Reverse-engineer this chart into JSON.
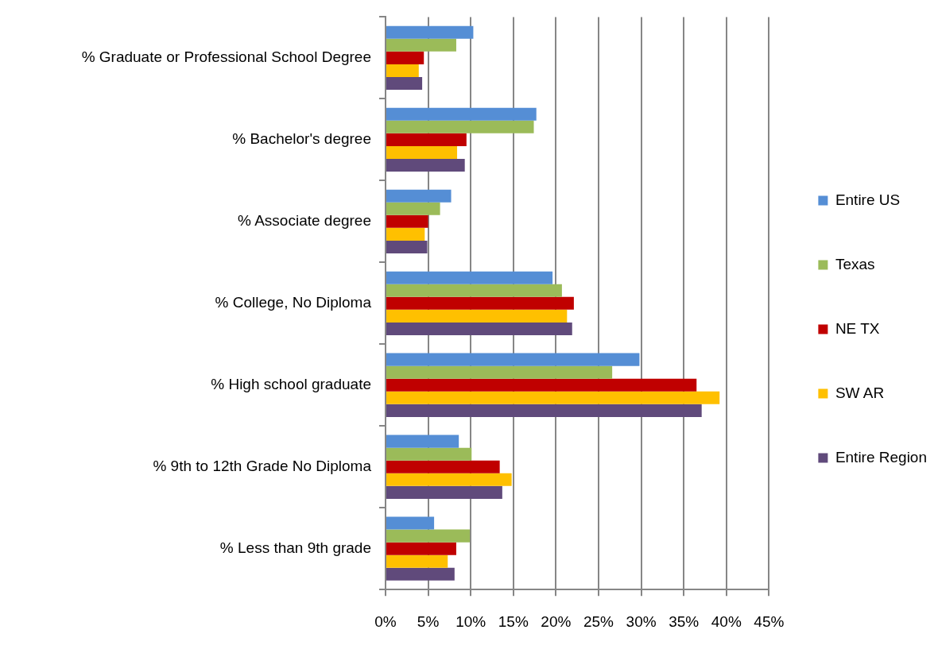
{
  "chart_data": {
    "type": "bar",
    "orientation": "horizontal",
    "categories": [
      "% Graduate or Professional School Degree",
      "% Bachelor's degree",
      "% Associate degree",
      "% College, No Diploma",
      "% High school graduate",
      "% 9th to 12th Grade No Diploma",
      "% Less than 9th grade"
    ],
    "series": [
      {
        "name": "Entire US",
        "color": "#558ed5",
        "values": [
          10.3,
          17.7,
          7.7,
          19.6,
          29.8,
          8.6,
          5.7
        ]
      },
      {
        "name": "Texas",
        "color": "#9bbb59",
        "values": [
          8.3,
          17.4,
          6.4,
          20.7,
          26.6,
          10.1,
          9.9
        ]
      },
      {
        "name": "NE TX",
        "color": "#c00000",
        "values": [
          4.5,
          9.5,
          5.0,
          22.1,
          36.5,
          13.4,
          8.3
        ]
      },
      {
        "name": "SW AR",
        "color": "#ffc000",
        "values": [
          3.9,
          8.4,
          4.6,
          21.3,
          39.2,
          14.8,
          7.3
        ]
      },
      {
        "name": "Entire Region",
        "color": "#604a7b",
        "values": [
          4.3,
          9.3,
          4.9,
          21.9,
          37.1,
          13.7,
          8.1
        ]
      }
    ],
    "xlim": [
      0,
      45
    ],
    "xticks": [
      {
        "value": 0,
        "label": "0%"
      },
      {
        "value": 5,
        "label": "5%"
      },
      {
        "value": 10,
        "label": "10%"
      },
      {
        "value": 15,
        "label": "15%"
      },
      {
        "value": 20,
        "label": "20%"
      },
      {
        "value": 25,
        "label": "25%"
      },
      {
        "value": 30,
        "label": "30%"
      },
      {
        "value": 35,
        "label": "35%"
      },
      {
        "value": 40,
        "label": "40%"
      },
      {
        "value": 45,
        "label": "45%"
      }
    ],
    "grid": "x",
    "legend": "right"
  }
}
